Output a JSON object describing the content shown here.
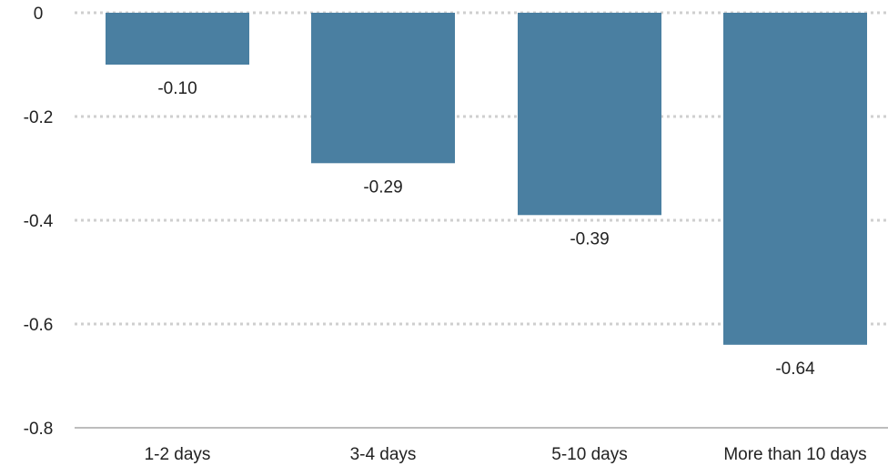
{
  "chart_data": {
    "type": "bar",
    "categories": [
      "1-2 days",
      "3-4 days",
      "5-10 days",
      "More than 10 days"
    ],
    "values": [
      -0.1,
      -0.29,
      -0.39,
      -0.64
    ],
    "value_labels": [
      "-0.10",
      "-0.29",
      "-0.39",
      "-0.64"
    ],
    "y_ticks": [
      0,
      -0.2,
      -0.4,
      -0.6,
      -0.8
    ],
    "y_tick_labels": [
      "0",
      "-0.2",
      "-0.4",
      "-0.6",
      "-0.8"
    ],
    "ylim": [
      -0.8,
      0
    ],
    "title": "",
    "xlabel": "",
    "ylabel": "",
    "grid": true,
    "legend": "none",
    "colors": {
      "bar": "#4a7fa1",
      "grid": "#cfcfcf",
      "baseline": "#bdbdbd",
      "text": "#222222"
    }
  }
}
